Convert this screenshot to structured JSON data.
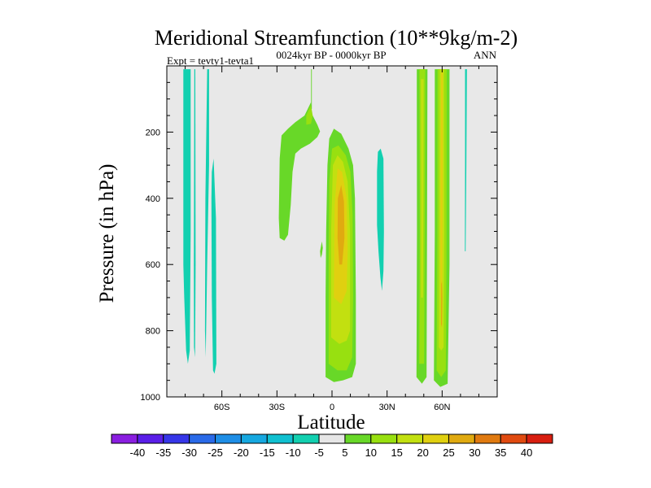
{
  "chart_data": {
    "type": "contour",
    "title": "Meridional Streamfunction (10**9kg/m-2)",
    "subtitle": "0024kyr BP - 0000kyr BP",
    "left_label": "Expt = tevty1-tevta1",
    "right_label": "ANN",
    "xlabel": "Latitude",
    "ylabel": "Pressure (in hPa)",
    "xlim": [
      -90,
      90
    ],
    "ylim": [
      1000,
      0
    ],
    "x_ticks": [
      {
        "value": -60,
        "label": "60S"
      },
      {
        "value": -30,
        "label": "30S"
      },
      {
        "value": 0,
        "label": "0"
      },
      {
        "value": 30,
        "label": "30N"
      },
      {
        "value": 60,
        "label": "60N"
      }
    ],
    "y_ticks": [
      {
        "value": 200,
        "label": "200"
      },
      {
        "value": 400,
        "label": "400"
      },
      {
        "value": 600,
        "label": "600"
      },
      {
        "value": 800,
        "label": "800"
      },
      {
        "value": 1000,
        "label": "1000"
      }
    ],
    "background_color": "#e8e8e8",
    "colorbar": {
      "labels": [
        "-40",
        "-35",
        "-30",
        "-25",
        "-20",
        "-15",
        "-10",
        "-5",
        "5",
        "10",
        "15",
        "20",
        "25",
        "30",
        "35",
        "40"
      ],
      "colors": [
        "#8a1ee0",
        "#5a1ee8",
        "#3636e8",
        "#2a6ae8",
        "#1e8ee6",
        "#16a8e0",
        "#10c0d0",
        "#12d0b0",
        "#e6e6e6",
        "#68d828",
        "#98e010",
        "#c2e010",
        "#e0d010",
        "#e0aa10",
        "#e07a10",
        "#e04a10",
        "#d81e10"
      ]
    },
    "regions": [
      {
        "name": "sh-polar-band-a",
        "level": -5,
        "points": [
          [
            -81,
            10
          ],
          [
            -77,
            10
          ],
          [
            -77,
            500
          ],
          [
            -77.5,
            860
          ],
          [
            -78.5,
            900
          ],
          [
            -79.5,
            860
          ],
          [
            -80.5,
            700
          ],
          [
            -81,
            600
          ]
        ]
      },
      {
        "name": "sh-polar-band-b",
        "level": -5,
        "points": [
          [
            -75,
            10
          ],
          [
            -74.5,
            10
          ],
          [
            -74.3,
            600
          ],
          [
            -74.6,
            880
          ],
          [
            -75.2,
            850
          ],
          [
            -75.3,
            600
          ]
        ]
      },
      {
        "name": "sh-polar-band-c",
        "level": -5,
        "points": [
          [
            -68,
            10
          ],
          [
            -67,
            10
          ],
          [
            -67,
            300
          ],
          [
            -68,
            600
          ],
          [
            -68.8,
            880
          ],
          [
            -69.2,
            800
          ],
          [
            -69,
            400
          ]
        ]
      },
      {
        "name": "sh-polar-band-d",
        "level": -5,
        "points": [
          [
            -65.5,
            320
          ],
          [
            -64.5,
            280
          ],
          [
            -63.2,
            460
          ],
          [
            -63,
            900
          ],
          [
            -64,
            930
          ],
          [
            -64.8,
            920
          ],
          [
            -65.5,
            700
          ],
          [
            -65.7,
            400
          ]
        ]
      },
      {
        "name": "sh-tropical-arm",
        "level": 5,
        "points": [
          [
            -28.5,
            520
          ],
          [
            -29,
            460
          ],
          [
            -28.5,
            280
          ],
          [
            -27.5,
            210
          ],
          [
            -24,
            190
          ],
          [
            -20,
            170
          ],
          [
            -15,
            150
          ],
          [
            -11.5,
            110
          ],
          [
            -11,
            145
          ],
          [
            -8,
            178
          ],
          [
            -6.5,
            198
          ],
          [
            -8,
            215
          ],
          [
            -10,
            225
          ],
          [
            -12,
            235
          ],
          [
            -17,
            250
          ],
          [
            -20,
            265
          ],
          [
            -21.5,
            320
          ],
          [
            -22.5,
            420
          ],
          [
            -24,
            510
          ],
          [
            -26,
            528
          ]
        ]
      },
      {
        "name": "sh-tropical-arm-core",
        "level": 10,
        "points": [
          [
            -14,
            150
          ],
          [
            -11.5,
            118
          ],
          [
            -10.5,
            150
          ],
          [
            -11.5,
            175
          ],
          [
            -14,
            178
          ]
        ]
      },
      {
        "name": "sh-upper-spike",
        "level": 5,
        "points": [
          [
            -11.4,
            10
          ],
          [
            -11,
            10
          ],
          [
            -11,
            130
          ],
          [
            -11.4,
            130
          ]
        ]
      },
      {
        "name": "sh-small-blob",
        "level": 5,
        "points": [
          [
            -6.5,
            560
          ],
          [
            -5.5,
            530
          ],
          [
            -5,
            550
          ],
          [
            -5.5,
            570
          ],
          [
            -6.2,
            580
          ]
        ]
      },
      {
        "name": "tropical-main-cell",
        "level": 5,
        "points": [
          [
            -3.5,
            940
          ],
          [
            -3.5,
            700
          ],
          [
            -3.2,
            500
          ],
          [
            -2.5,
            300
          ],
          [
            -1.5,
            220
          ],
          [
            1,
            190
          ],
          [
            5,
            205
          ],
          [
            9,
            250
          ],
          [
            11.5,
            300
          ],
          [
            12.5,
            400
          ],
          [
            13,
            700
          ],
          [
            13,
            900
          ],
          [
            11,
            940
          ],
          [
            6,
            950
          ],
          [
            1,
            955
          ]
        ]
      },
      {
        "name": "tropical-main-cell-10",
        "level": 10,
        "points": [
          [
            -1.8,
            900
          ],
          [
            -1.8,
            600
          ],
          [
            -1.5,
            350
          ],
          [
            0,
            250
          ],
          [
            3.5,
            240
          ],
          [
            7.5,
            270
          ],
          [
            10,
            320
          ],
          [
            11.2,
            450
          ],
          [
            11.5,
            700
          ],
          [
            11,
            880
          ],
          [
            8,
            920
          ],
          [
            3,
            920
          ]
        ]
      },
      {
        "name": "tropical-main-cell-15",
        "level": 15,
        "points": [
          [
            -0.5,
            820
          ],
          [
            -0.5,
            500
          ],
          [
            0.5,
            300
          ],
          [
            3,
            270
          ],
          [
            6,
            290
          ],
          [
            8.5,
            350
          ],
          [
            9.8,
            500
          ],
          [
            9.8,
            800
          ],
          [
            8,
            830
          ],
          [
            4,
            840
          ]
        ]
      },
      {
        "name": "tropical-main-cell-20",
        "level": 20,
        "points": [
          [
            1,
            700
          ],
          [
            1.4,
            420
          ],
          [
            3,
            310
          ],
          [
            5.5,
            320
          ],
          [
            8,
            400
          ],
          [
            8.5,
            560
          ],
          [
            8,
            680
          ],
          [
            5,
            720
          ]
        ]
      },
      {
        "name": "tropical-main-cell-25",
        "level": 25,
        "points": [
          [
            3,
            520
          ],
          [
            3.2,
            400
          ],
          [
            5,
            360
          ],
          [
            6.5,
            410
          ],
          [
            6.8,
            520
          ],
          [
            5.5,
            600
          ],
          [
            4,
            600
          ]
        ]
      },
      {
        "name": "nh-tropical-band",
        "level": -5,
        "points": [
          [
            24.5,
            320
          ],
          [
            25,
            260
          ],
          [
            26.5,
            250
          ],
          [
            28,
            280
          ],
          [
            28.3,
            500
          ],
          [
            28,
            620
          ],
          [
            27.2,
            680
          ],
          [
            26.4,
            640
          ],
          [
            25.3,
            560
          ],
          [
            24.5,
            480
          ]
        ]
      },
      {
        "name": "nh-midlat-cell-a",
        "level": 5,
        "points": [
          [
            46,
            940
          ],
          [
            46.3,
            500
          ],
          [
            46.2,
            10
          ],
          [
            52,
            10
          ],
          [
            51.8,
            500
          ],
          [
            51.5,
            940
          ],
          [
            49,
            960
          ]
        ]
      },
      {
        "name": "nh-midlat-cell-a-10",
        "level": 10,
        "points": [
          [
            47.5,
            900
          ],
          [
            47.8,
            500
          ],
          [
            47.6,
            10
          ],
          [
            50.8,
            10
          ],
          [
            50.5,
            500
          ],
          [
            50.2,
            900
          ]
        ]
      },
      {
        "name": "nh-midlat-cell-a-15",
        "level": 15,
        "points": [
          [
            48.5,
            700
          ],
          [
            48.6,
            400
          ],
          [
            48.4,
            40
          ],
          [
            49.9,
            40
          ],
          [
            49.8,
            400
          ],
          [
            49.5,
            700
          ]
        ]
      },
      {
        "name": "nh-midlat-cell-b",
        "level": 5,
        "points": [
          [
            55.5,
            950
          ],
          [
            56,
            500
          ],
          [
            56,
            10
          ],
          [
            64,
            10
          ],
          [
            64,
            600
          ],
          [
            63,
            960
          ],
          [
            59,
            970
          ]
        ]
      },
      {
        "name": "nh-midlat-cell-b-10",
        "level": 10,
        "points": [
          [
            57,
            920
          ],
          [
            57.4,
            500
          ],
          [
            57.5,
            10
          ],
          [
            62.5,
            10
          ],
          [
            62.4,
            600
          ],
          [
            62,
            920
          ],
          [
            59.5,
            940
          ]
        ]
      },
      {
        "name": "nh-midlat-cell-b-15",
        "level": 15,
        "points": [
          [
            58.2,
            850
          ],
          [
            58.5,
            400
          ],
          [
            58.7,
            10
          ],
          [
            61,
            10
          ],
          [
            61.2,
            500
          ],
          [
            60.8,
            850
          ],
          [
            59.5,
            860
          ]
        ]
      },
      {
        "name": "nh-midlat-cell-b-20",
        "level": 20,
        "points": [
          [
            59.1,
            700
          ],
          [
            59.2,
            300
          ],
          [
            59.5,
            20
          ],
          [
            60.4,
            20
          ],
          [
            60.3,
            300
          ],
          [
            60,
            700
          ]
        ]
      },
      {
        "name": "nh-midlat-cell-b-25",
        "level": 25,
        "points": [
          [
            59.4,
            780
          ],
          [
            59.5,
            660
          ],
          [
            59.9,
            650
          ],
          [
            60.1,
            700
          ],
          [
            59.9,
            790
          ]
        ]
      },
      {
        "name": "nh-polar-band",
        "level": -5,
        "points": [
          [
            72.5,
            10
          ],
          [
            73.5,
            10
          ],
          [
            73.2,
            300
          ],
          [
            72.8,
            560
          ],
          [
            72.4,
            560
          ],
          [
            72.5,
            300
          ]
        ]
      }
    ]
  }
}
